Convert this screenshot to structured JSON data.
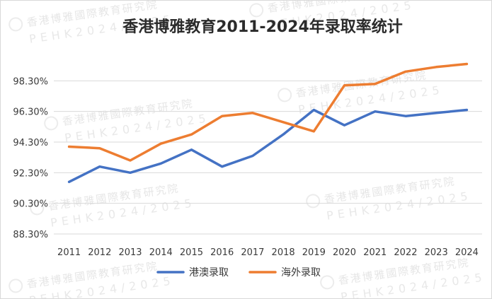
{
  "watermark": {
    "line1": "香港博雅國際教育研究院",
    "line2": "PEHK2024/2025"
  },
  "chart_data": {
    "type": "line",
    "title": "香港博雅教育2011-2024年录取率统计",
    "xlabel": "",
    "ylabel": "",
    "categories": [
      "2011",
      "2012",
      "2013",
      "2014",
      "2015",
      "2016",
      "2017",
      "2018",
      "2019",
      "2020",
      "2021",
      "2022",
      "2023",
      "2024"
    ],
    "yticks": [
      "88.30%",
      "90.30%",
      "92.30%",
      "94.30%",
      "96.30%",
      "98.30%"
    ],
    "ylim": [
      88.3,
      100.3
    ],
    "grid": true,
    "legend_position": "bottom",
    "series": [
      {
        "name": "港澳录取",
        "color": "#4472C4",
        "values": [
          91.7,
          92.7,
          92.3,
          92.9,
          93.8,
          92.7,
          93.4,
          94.8,
          96.4,
          95.4,
          96.3,
          96.0,
          96.2,
          96.4
        ]
      },
      {
        "name": "海外录取",
        "color": "#ED7D31",
        "values": [
          94.0,
          93.9,
          93.1,
          94.2,
          94.8,
          96.0,
          96.2,
          95.6,
          95.0,
          98.0,
          98.1,
          98.9,
          99.2,
          99.4
        ]
      }
    ]
  }
}
